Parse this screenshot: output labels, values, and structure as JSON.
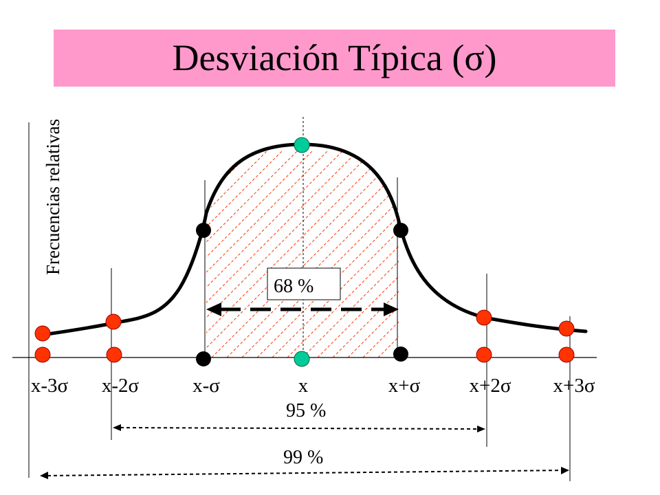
{
  "title": "Desviación Típica (σ)",
  "ylabel": "Frecuencias relativas",
  "xticks": [
    "x-3σ",
    "x-2σ",
    "x-σ",
    "x",
    "x+σ",
    "x+2σ",
    "x+3σ"
  ],
  "labels": {
    "p68": "68 %",
    "p95": "95 %",
    "p99": "99 %"
  },
  "colors": {
    "title_band": "#ff99cc",
    "point_outer": "#ff3300",
    "point_sigma": "#000000",
    "point_mean": "#00cc99",
    "hatch": "#ff3300",
    "curve": "#000000"
  }
}
